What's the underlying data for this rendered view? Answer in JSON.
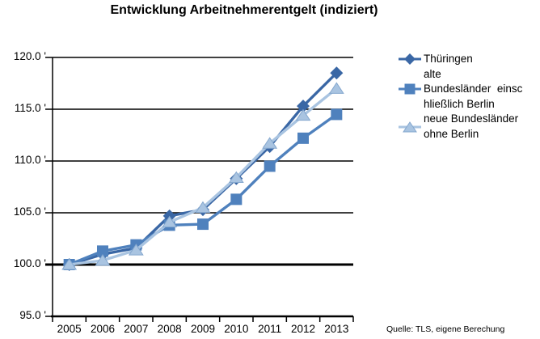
{
  "title": "Entwicklung Arbeitnehmerentgelt (indiziert)",
  "source_note": "Quelle: TLS, eigene Berechung",
  "chart_data": {
    "type": "line",
    "title": "Entwicklung Arbeitnehmerentgelt (indiziert)",
    "categories": [
      "2005",
      "2006",
      "2007",
      "2008",
      "2009",
      "2010",
      "2011",
      "2012",
      "2013"
    ],
    "series": [
      {
        "name": "Thüringen",
        "legend_label": "Thüringen",
        "marker": "diamond",
        "color": "#3A67A5",
        "values": [
          100.0,
          101.0,
          101.6,
          104.7,
          105.3,
          108.3,
          111.4,
          115.3,
          118.5
        ]
      },
      {
        "name": "alte Bundesländer einschließlich Berlin",
        "legend_label": "alte\nBundesländer  einsc\nhließlich Berlin",
        "marker": "square",
        "color": "#4F81BD",
        "values": [
          100.0,
          101.3,
          101.9,
          103.8,
          103.9,
          106.3,
          109.5,
          112.2,
          114.5
        ]
      },
      {
        "name": "neue Bundesländer ohne Berlin",
        "legend_label": "neue Bundesländer\nohne Berlin",
        "marker": "triangle",
        "color": "#A9C4E1",
        "marker_edge_color": "#84A7CE",
        "values": [
          100.0,
          100.4,
          101.4,
          104.1,
          105.5,
          108.4,
          111.7,
          114.4,
          117.0
        ]
      }
    ],
    "xlabel": "",
    "ylabel": "",
    "ylim": [
      95,
      120
    ],
    "yticks": [
      95,
      100,
      105,
      110,
      115,
      120
    ],
    "ytick_labels": [
      "95.0 '",
      "100.0 '",
      "105.0 '",
      "110.0 '",
      "115.0 '",
      "120.0 '"
    ],
    "emphasized_gridline": 100,
    "grid": true,
    "legend_position": "right",
    "axis_color": "#000000"
  }
}
